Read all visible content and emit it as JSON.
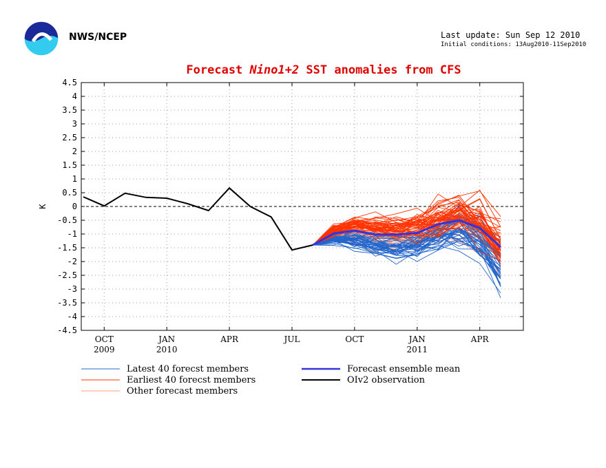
{
  "header": {
    "agency": "NWS/NCEP",
    "last_update": "Last update: Sun Sep 12 2010",
    "initial_conditions": "Initial conditions: 13Aug2010-11Sep2010"
  },
  "chart_data": {
    "type": "line",
    "title_parts": [
      "Forecast ",
      "Nino1+2",
      " SST anomalies from CFS"
    ],
    "ylabel": "K",
    "xlabel": "",
    "ylim": [
      -4.5,
      4.5
    ],
    "y_ticks": [
      "4.5",
      "4",
      "3.5",
      "3",
      "2.5",
      "2",
      "1.5",
      "1",
      "0.5",
      "0",
      "-0.5",
      "-1",
      "-1.5",
      "-2",
      "-2.5",
      "-3",
      "-3.5",
      "-4",
      "-4.5"
    ],
    "x_range": [
      0,
      21
    ],
    "x_ticks": [
      {
        "x": 1,
        "label": "OCT",
        "year": "2009"
      },
      {
        "x": 4,
        "label": "JAN",
        "year": "2010"
      },
      {
        "x": 7,
        "label": "APR",
        "year": ""
      },
      {
        "x": 10,
        "label": "JUL",
        "year": ""
      },
      {
        "x": 13,
        "label": "OCT",
        "year": ""
      },
      {
        "x": 16,
        "label": "JAN",
        "year": "2011"
      },
      {
        "x": 19,
        "label": "APR",
        "year": ""
      }
    ],
    "grid": true,
    "zero_line": true,
    "observation": {
      "name": "OIv2 observation",
      "color": "#000000",
      "x": [
        0,
        1,
        2,
        3,
        4,
        5,
        6,
        7,
        8,
        9,
        10,
        11
      ],
      "y": [
        0.35,
        0.02,
        0.48,
        0.33,
        0.3,
        0.1,
        -0.15,
        0.67,
        0.0,
        -0.38,
        -1.58,
        -1.4
      ]
    },
    "ensemble_mean": {
      "name": "Forecast ensemble mean",
      "color": "#3333dd",
      "x": [
        11,
        12,
        13,
        14,
        15,
        16,
        17,
        18,
        19,
        20
      ],
      "y": [
        -1.4,
        -0.98,
        -0.88,
        -1.02,
        -1.02,
        -0.97,
        -0.65,
        -0.5,
        -0.78,
        -1.48
      ]
    },
    "members": {
      "start": {
        "x": 11,
        "y": -1.4
      },
      "x": [
        12,
        13,
        14,
        15,
        16,
        17,
        18,
        19,
        20
      ],
      "groups": [
        {
          "name": "Latest 40 forecst members",
          "color": "#2266cc",
          "count": 40,
          "mean": [
            -1.2,
            -1.25,
            -1.4,
            -1.48,
            -1.45,
            -1.1,
            -0.85,
            -1.2,
            -2.2
          ],
          "spread": [
            0.15,
            0.2,
            0.25,
            0.3,
            0.35,
            0.4,
            0.45,
            0.5,
            0.7
          ]
        },
        {
          "name": "Earliest 40 forecst members",
          "color": "#ff3300",
          "count": 40,
          "mean": [
            -0.85,
            -0.65,
            -0.75,
            -0.78,
            -0.7,
            -0.35,
            -0.15,
            -0.45,
            -1.3
          ],
          "spread": [
            0.18,
            0.25,
            0.28,
            0.3,
            0.35,
            0.45,
            0.45,
            0.45,
            0.6
          ]
        },
        {
          "name": "Other forecast members",
          "color": "#ff9977",
          "count": 30,
          "mean": [
            -1.0,
            -1.0,
            -1.1,
            -1.15,
            -1.15,
            -0.8,
            -0.55,
            -0.8,
            -1.6
          ],
          "spread": [
            0.2,
            0.25,
            0.3,
            0.3,
            0.35,
            0.4,
            0.45,
            0.5,
            0.6
          ]
        }
      ]
    },
    "legend": [
      {
        "label": "Latest 40 forecst members",
        "color": "#2266cc",
        "width": 1
      },
      {
        "label": "Earliest 40 forecst members",
        "color": "#ff3300",
        "width": 1
      },
      {
        "label": "Other forecast members",
        "color": "#ff9977",
        "width": 1
      },
      {
        "label": "Forecast ensemble mean",
        "color": "#3333dd",
        "width": 2.5
      },
      {
        "label": "OIv2 observation",
        "color": "#000000",
        "width": 2
      }
    ]
  }
}
